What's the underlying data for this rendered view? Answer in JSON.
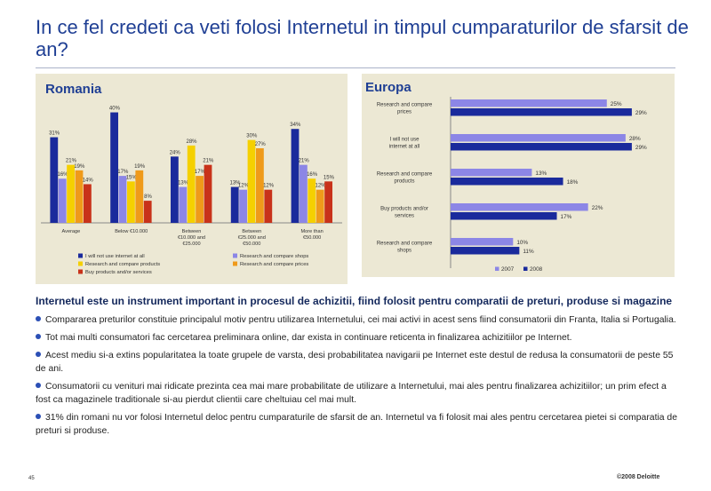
{
  "page": {
    "title": "In ce fel credeti ca veti folosi Internetul in timpul cumparaturilor de sfarsit de an?",
    "page_number": "45",
    "copyright": "©2008 Deloitte"
  },
  "colors": {
    "navy": "#1a2a9c",
    "lavender": "#8c86e6",
    "yellow": "#f5d000",
    "orange": "#ef9a1a",
    "red": "#c8321a",
    "panel_bg": "#ece8d4"
  },
  "chart_data": [
    {
      "type": "bar",
      "title": "Romania",
      "categories": [
        "Average",
        "Below €10.000",
        "Between €10.000 and €25.000",
        "Between €25.000 and €50.000",
        "More than €50.000"
      ],
      "series": [
        {
          "name": "I will not use internet at all",
          "color": "#1a2a9c",
          "values": [
            31,
            40,
            24,
            13,
            34
          ]
        },
        {
          "name": "Research and compare shops",
          "color": "#8c86e6",
          "values": [
            16,
            17,
            13,
            12,
            21
          ]
        },
        {
          "name": "Research and compare products",
          "color": "#f5d000",
          "values": [
            21,
            15,
            28,
            30,
            16
          ]
        },
        {
          "name": "Research and compare prices",
          "color": "#ef9a1a",
          "values": [
            19,
            19,
            17,
            27,
            12
          ]
        },
        {
          "name": "Buy products and/or services",
          "color": "#c8321a",
          "values": [
            14,
            8,
            21,
            12,
            15
          ]
        }
      ],
      "data_labels": [
        [
          "31%",
          "16%",
          "21%",
          "19%",
          "14%"
        ],
        [
          "40%",
          "17%",
          "15%",
          "19%",
          "8%"
        ],
        [
          "24%",
          "13%",
          "28%",
          "17%",
          "21%"
        ],
        [
          "13%",
          "12%",
          "30%",
          "27%",
          "12%"
        ],
        [
          "34%",
          "21%",
          "16%",
          "12%",
          "15%"
        ]
      ],
      "ylim": [
        0,
        45
      ],
      "legend_position": "bottom"
    },
    {
      "type": "bar",
      "orientation": "horizontal",
      "title": "Europa",
      "categories": [
        "Research and compare prices",
        "I will not use internet at all",
        "Research and compare products",
        "Buy products and/or services",
        "Research and compare shops"
      ],
      "series": [
        {
          "name": "2007",
          "color": "#8c86e6",
          "values": [
            25,
            28,
            13,
            22,
            10
          ]
        },
        {
          "name": "2008",
          "color": "#1a2a9c",
          "values": [
            29,
            29,
            18,
            17,
            11
          ]
        }
      ],
      "data_labels": [
        [
          "25%",
          "29%"
        ],
        [
          "28%",
          "29%"
        ],
        [
          "13%",
          "18%"
        ],
        [
          "22%",
          "17%"
        ],
        [
          "10%",
          "11%"
        ]
      ],
      "xlim": [
        0,
        32
      ],
      "legend_position": "bottom"
    }
  ],
  "summary": {
    "lead": "Internetul este un instrument important in procesul de achizitii, fiind folosit pentru comparatii de preturi, produse si magazine",
    "bullets": [
      "Compararea preturilor constituie principalul motiv pentru utilizarea Internetului, cei mai activi in acest sens fiind consumatorii din Franta, Italia si Portugalia.",
      "Tot mai multi consumatori fac cercetarea preliminara online, dar exista in continuare reticenta in finalizarea achizitiilor pe Internet.",
      "Acest mediu si-a extins popularitatea la toate grupele de varsta, desi probabilitatea navigarii pe Internet este destul de redusa la consumatorii de peste 55 de ani.",
      "Consumatorii cu venituri mai ridicate prezinta cea mai mare probabilitate de utilizare a Internetului, mai ales pentru finalizarea achizitiilor; un prim efect a fost ca magazinele traditionale si-au pierdut clientii care cheltuiau cel mai mult.",
      "31% din romani nu vor folosi Internetul deloc pentru cumparaturile de sfarsit de an. Internetul va fi folosit mai ales pentru cercetarea pietei si comparatia de preturi si produse."
    ]
  }
}
